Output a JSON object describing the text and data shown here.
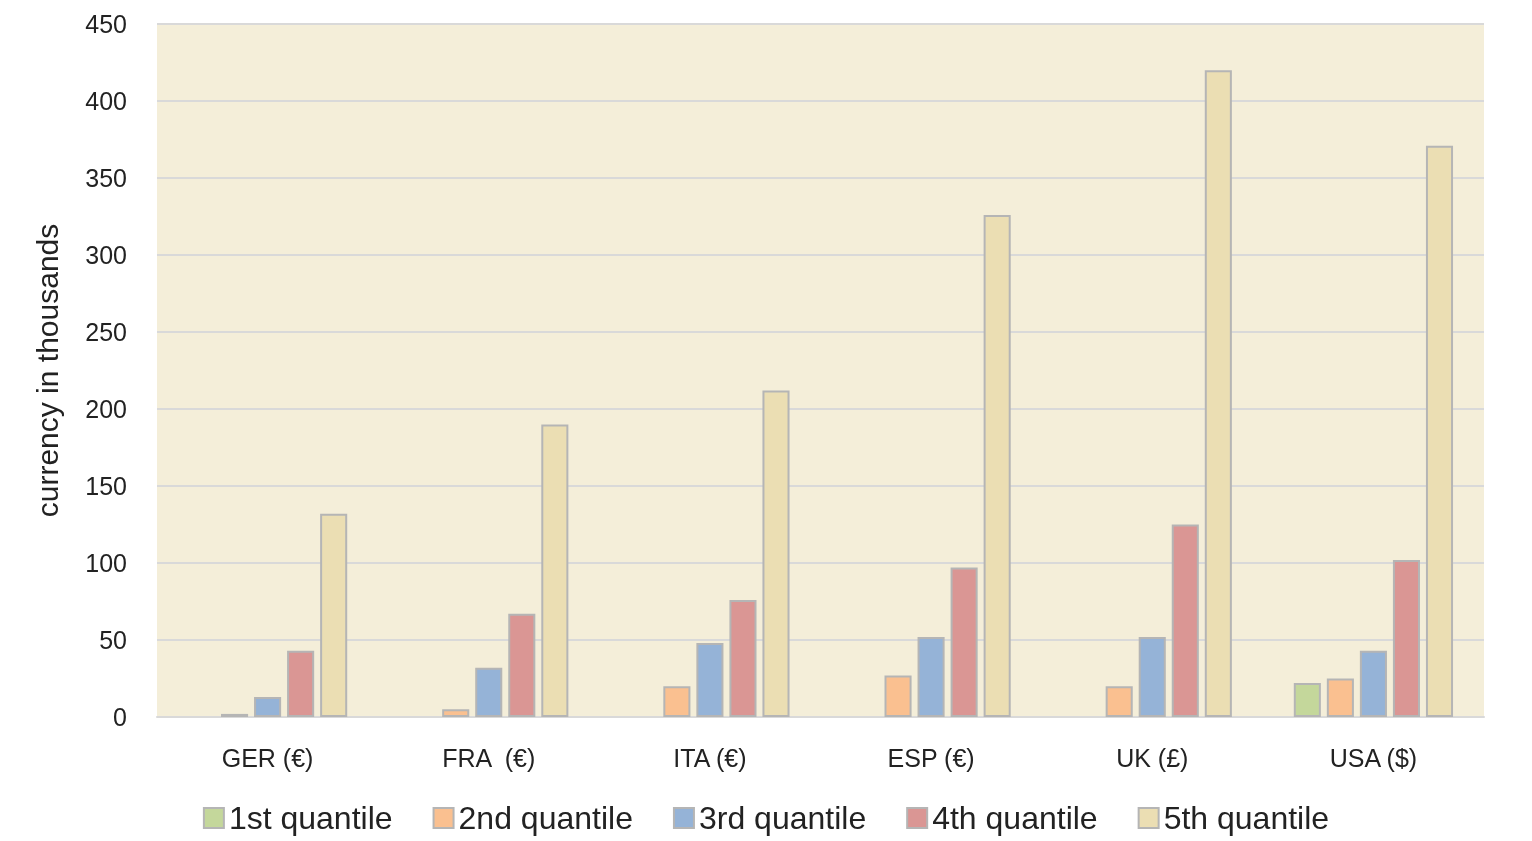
{
  "chart_data": {
    "type": "bar",
    "ylabel": "currency in thousands",
    "categories": [
      "GER (€)",
      "FRA  (€)",
      "ITA (€)",
      "ESP (€)",
      "UK (£)",
      "USA ($)"
    ],
    "series": [
      {
        "name": "1st quantile",
        "color": "#c4d79b",
        "values": [
          null,
          null,
          null,
          null,
          null,
          22
        ]
      },
      {
        "name": "2nd quantile",
        "color": "#fac090",
        "values": [
          2,
          5,
          20,
          27,
          20,
          25
        ]
      },
      {
        "name": "3rd quantile",
        "color": "#95b3d7",
        "values": [
          13,
          32,
          48,
          52,
          52,
          43
        ]
      },
      {
        "name": "4th quantile",
        "color": "#da9694",
        "values": [
          43,
          67,
          76,
          97,
          125,
          102
        ]
      },
      {
        "name": "5th quantile",
        "color": "#ebdeb3",
        "values": [
          132,
          190,
          212,
          326,
          420,
          371
        ]
      }
    ],
    "ylim": [
      0,
      450
    ],
    "yticks": [
      0,
      50,
      100,
      150,
      200,
      250,
      300,
      350,
      400,
      450
    ],
    "grid": "y",
    "legend": "bottom"
  }
}
